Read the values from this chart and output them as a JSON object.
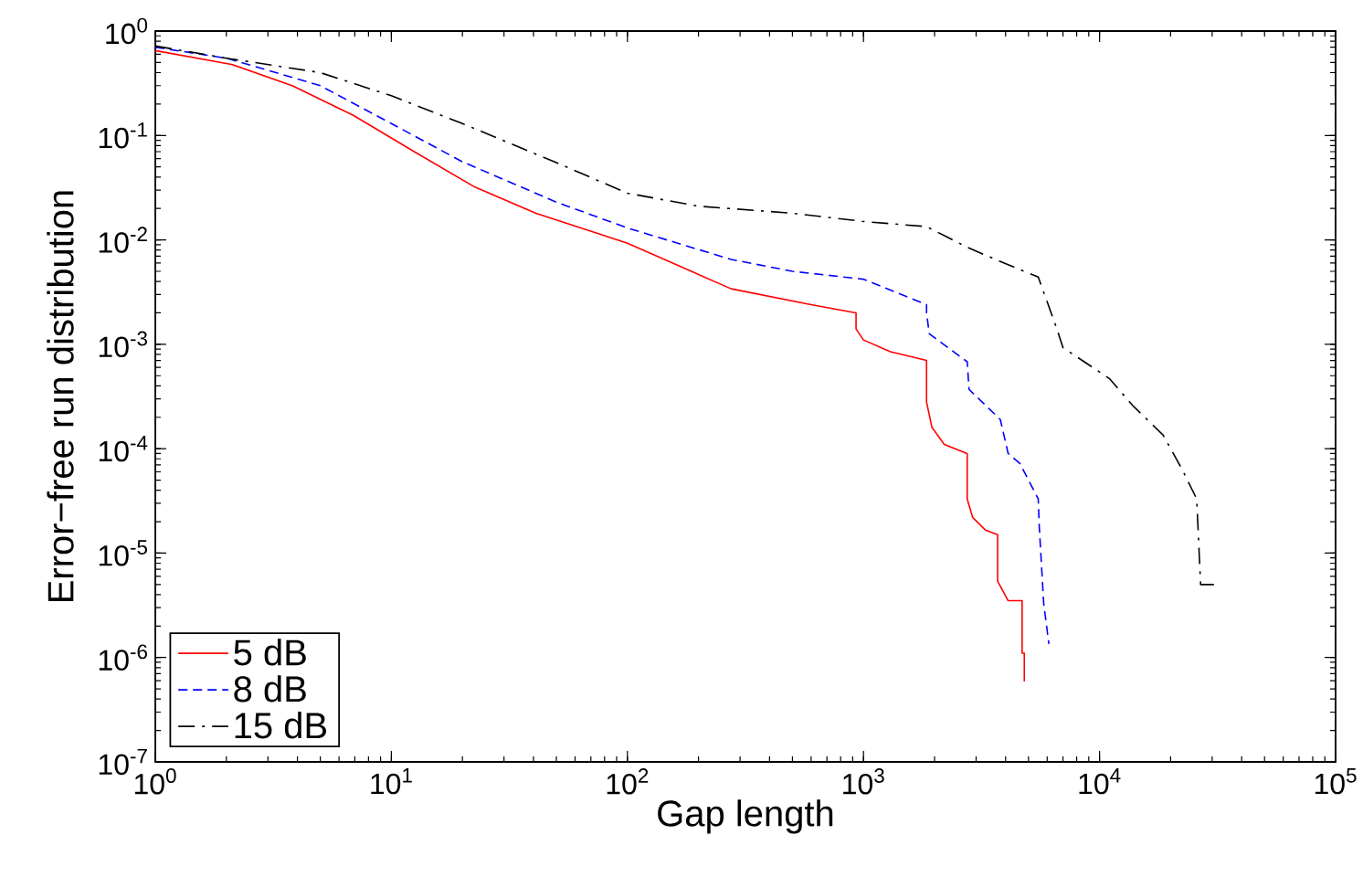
{
  "chart_data": {
    "type": "line",
    "xlabel": "Gap length",
    "ylabel": "Error−free run distribution",
    "log": "xy",
    "legend": "bottom left",
    "grid": false,
    "xlim": [
      1,
      100000
    ],
    "ylim": [
      1e-07,
      1
    ],
    "xticks": [
      {
        "value": 1,
        "label": "10$^{0}$"
      },
      {
        "value": 10,
        "label": "10$^{1}$"
      },
      {
        "value": 100,
        "label": "10$^{2}$"
      },
      {
        "value": 1000,
        "label": "10$^{3}$"
      },
      {
        "value": 10000,
        "label": "10$^{4}$"
      },
      {
        "value": 100000,
        "label": "10$^{5}$"
      }
    ],
    "yticks": [
      {
        "value": 1e-07,
        "label": "10$^{-7}$"
      },
      {
        "value": 1e-06,
        "label": "10$^{-6}$"
      },
      {
        "value": 1e-05,
        "label": "10$^{-5}$"
      },
      {
        "value": 0.0001,
        "label": "10$^{-4}$"
      },
      {
        "value": 0.001,
        "label": "10$^{-3}$"
      },
      {
        "value": 0.01,
        "label": "10$^{-2}$"
      },
      {
        "value": 0.1,
        "label": "10$^{-1}$"
      },
      {
        "value": 1,
        "label": "10$^{0}$"
      }
    ],
    "series": [
      {
        "name": "5 dB",
        "color": "#ff0000",
        "line_style": "solid",
        "x": [
          1,
          2.1,
          3.8,
          6.9,
          12.5,
          22.6,
          41,
          100,
          275,
          600,
          930,
          930,
          1000,
          1300,
          1850,
          1850,
          1950,
          2200,
          2750,
          2750,
          2900,
          3300,
          3700,
          3700,
          4100,
          4700,
          4700,
          4800,
          4800
        ],
        "values": [
          0.65,
          0.48,
          0.3,
          0.156,
          0.07,
          0.032,
          0.018,
          0.0093,
          0.0034,
          0.0024,
          0.002,
          0.0014,
          0.0011,
          0.00085,
          0.0007,
          0.00028,
          0.00016,
          0.00011,
          9e-05,
          3.3e-05,
          2.2e-05,
          1.65e-05,
          1.5e-05,
          5.4e-06,
          3.5e-06,
          3.5e-06,
          1.1e-06,
          1.1e-06,
          5.9e-07
        ]
      },
      {
        "name": "8 dB",
        "color": "#0000ff",
        "line_style": "dashed",
        "x": [
          1,
          2,
          5,
          10,
          20,
          50,
          100,
          275,
          500,
          1000,
          1850,
          1850,
          1900,
          2750,
          2800,
          3800,
          4100,
          4600,
          5500,
          5550,
          5800,
          6100
        ],
        "values": [
          0.7,
          0.55,
          0.3,
          0.13,
          0.056,
          0.023,
          0.013,
          0.0065,
          0.005,
          0.0042,
          0.0024,
          0.002,
          0.00126,
          0.00068,
          0.00037,
          0.00019,
          9e-05,
          7.2e-05,
          3.3e-05,
          1.86e-05,
          3.3e-06,
          1.35e-06
        ]
      },
      {
        "name": "15 dB",
        "color": "#000000",
        "line_style": "dashdotted",
        "x": [
          1,
          2,
          5,
          10,
          20,
          50,
          100,
          200,
          500,
          1000,
          1850,
          2750,
          3800,
          5500,
          6600,
          7000,
          11000,
          13800,
          18600,
          22400,
          25800,
          26800,
          31700
        ],
        "values": [
          0.72,
          0.55,
          0.4,
          0.24,
          0.13,
          0.055,
          0.028,
          0.021,
          0.018,
          0.015,
          0.0134,
          0.0085,
          0.0062,
          0.0044,
          0.0014,
          0.00093,
          0.00047,
          0.00026,
          0.000135,
          6.3e-05,
          3.3e-05,
          5e-06,
          5e-06
        ]
      }
    ]
  }
}
